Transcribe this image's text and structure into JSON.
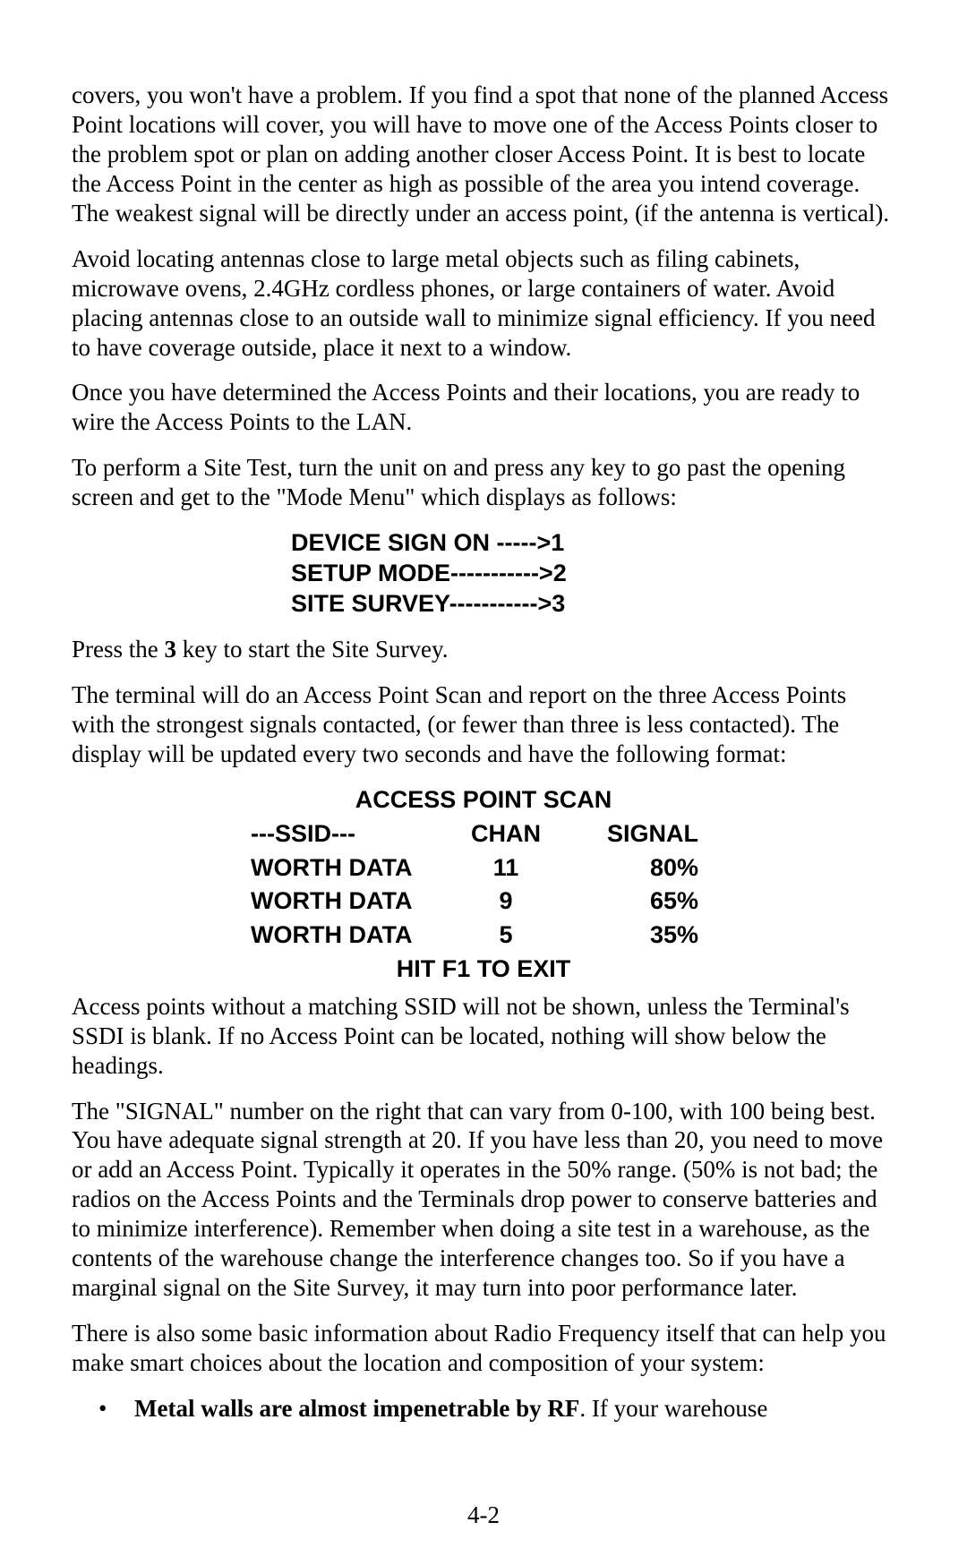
{
  "paragraphs": {
    "p1": "covers, you won't have a problem. If you find a spot that none of the planned Access Point locations will cover, you will have to move one of the Access Points closer to the problem spot or plan on adding another closer Access Point. It is best to locate the Access Point in the center as high as possible of the area you intend coverage. The weakest signal will be directly under an access point, (if the antenna is vertical).",
    "p2": "Avoid locating antennas close to large metal objects such as filing cabinets, microwave ovens, 2.4GHz cordless phones, or large containers of water. Avoid placing antennas close to an outside wall to minimize signal efficiency. If you need to have coverage outside, place it next to a window.",
    "p3": "Once you have determined the Access Points and their locations, you are ready to wire the Access Points to the LAN.",
    "p4": "To perform a Site Test, turn the unit on and press any key to go past the opening screen and get to the \"Mode Menu\" which displays as follows:",
    "p5_prefix": "Press the ",
    "p5_bold": "3",
    "p5_suffix": " key to start the Site Survey.",
    "p6": "The terminal will do an Access Point Scan and report on the three Access Points with the strongest signals contacted, (or fewer than three is less contacted). The display will be updated every two seconds and have the following format:",
    "p7": "Access points without a matching SSID will not be shown, unless the Terminal's SSDI is blank. If no Access Point can be located, nothing will show below the headings.",
    "p8": "The \"SIGNAL\" number on the right that can vary from 0-100, with 100 being best. You have adequate signal strength at 20. If you have less than 20, you need to move or add an Access Point. Typically it operates in the 50% range. (50% is not bad; the radios on the Access Points and the Terminals drop power to conserve batteries and to minimize interference). Remember when doing a site test in a warehouse, as the contents of the warehouse change the interference changes too. So if you have a marginal signal on the Site Survey, it may turn into poor performance later.",
    "p9": "There is also some basic information about Radio Frequency itself that can help you make smart choices about the location and composition of your system:"
  },
  "mode_menu": {
    "line1": "DEVICE SIGN ON ----->1",
    "line2": "SETUP MODE----------->2",
    "line3": "SITE SURVEY----------->3"
  },
  "scan": {
    "title": "ACCESS POINT SCAN",
    "head_ssid": "---SSID---",
    "head_chan": "CHAN",
    "head_signal": "SIGNAL",
    "rows": [
      {
        "ssid": "WORTH DATA",
        "chan": "11",
        "signal": "80%"
      },
      {
        "ssid": "WORTH DATA",
        "chan": "9",
        "signal": "65%"
      },
      {
        "ssid": "WORTH DATA",
        "chan": "5",
        "signal": "35%"
      }
    ],
    "footer": "HIT F1 TO EXIT"
  },
  "bullet": {
    "mark": "•",
    "bold": "Metal walls are almost impenetrable by RF",
    "rest": ". If your warehouse"
  },
  "page_number": "4-2",
  "style": {
    "body_font_family": "Times New Roman",
    "mono_font_family": "Arial",
    "body_font_size_pt": 20,
    "bold_font_weight": "bold",
    "text_color": "#000000",
    "background_color": "#ffffff"
  }
}
